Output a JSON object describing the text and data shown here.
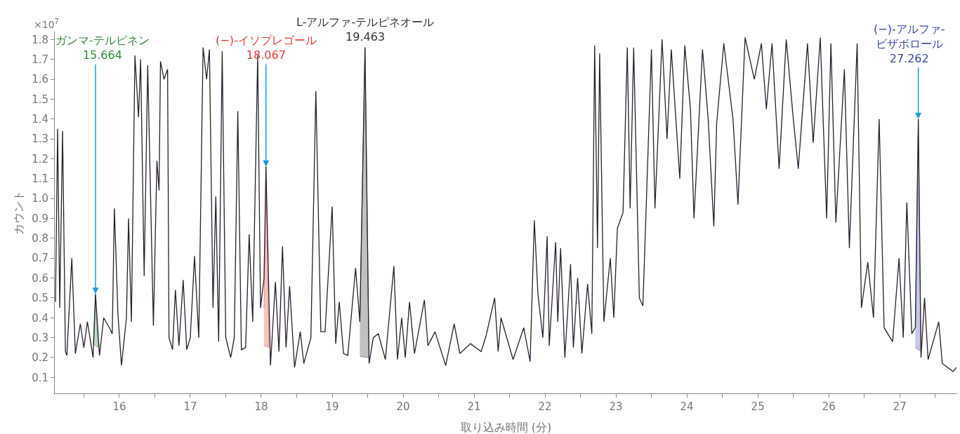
{
  "chart_data": {
    "type": "line",
    "xlabel": "取り込み時間 (分)",
    "ylabel": "カウント",
    "xlim": [
      15.09,
      27.81
    ],
    "xticks": [
      {
        "value": 15.5,
        "label": null
      },
      16,
      {
        "value": 16.5,
        "label": null
      },
      17,
      {
        "value": 17.5,
        "label": null
      },
      18,
      {
        "value": 18.5,
        "label": null
      },
      19,
      {
        "value": 19.5,
        "label": null
      },
      20,
      {
        "value": 20.5,
        "label": null
      },
      21,
      {
        "value": 21.5,
        "label": null
      },
      22,
      {
        "value": 22.5,
        "label": null
      },
      23,
      {
        "value": 23.5,
        "label": null
      },
      24,
      {
        "value": 24.5,
        "label": null
      },
      25,
      {
        "value": 25.5,
        "label": null
      },
      26,
      {
        "value": 26.5,
        "label": null
      },
      27,
      {
        "value": 27.5,
        "label": null
      }
    ],
    "ylim": [
      0.02,
      1.84
    ],
    "yticks": [
      0.1,
      0.2,
      0.3,
      0.4,
      0.5,
      0.6,
      0.7,
      0.8,
      0.9,
      {
        "value": 1.0,
        "label": "1.0"
      },
      1.1,
      1.2,
      1.3,
      1.4,
      1.5,
      1.6,
      1.7,
      1.8
    ],
    "marker": "none",
    "line_style": "solid",
    "series": [
      {
        "color": "#2a1f2d",
        "x": [
          15.1,
          15.13,
          15.16,
          15.2,
          15.24,
          15.26,
          15.33,
          15.38,
          15.45,
          15.5,
          15.55,
          15.63,
          15.664,
          15.72,
          15.78,
          15.86,
          15.9,
          15.93,
          15.98,
          16.03,
          16.1,
          16.13,
          16.17,
          16.22,
          16.27,
          16.3,
          16.35,
          16.4,
          16.48,
          16.53,
          16.56,
          16.58,
          16.63,
          16.68,
          16.7,
          16.75,
          16.79,
          16.84,
          16.9,
          16.95,
          17.0,
          17.06,
          17.12,
          17.18,
          17.23,
          17.27,
          17.32,
          17.36,
          17.4,
          17.45,
          17.5,
          17.57,
          17.62,
          17.67,
          17.72,
          17.78,
          17.83,
          17.88,
          17.95,
          17.99,
          18.04,
          18.067,
          18.13,
          18.2,
          18.25,
          18.3,
          18.35,
          18.4,
          18.47,
          18.55,
          18.6,
          18.7,
          18.77,
          18.84,
          18.9,
          19.0,
          19.05,
          19.1,
          19.16,
          19.22,
          19.33,
          19.39,
          19.463,
          19.52,
          19.58,
          19.65,
          19.75,
          19.87,
          19.92,
          19.98,
          20.03,
          20.09,
          20.16,
          20.3,
          20.35,
          20.45,
          20.6,
          20.72,
          20.8,
          20.95,
          21.1,
          21.17,
          21.29,
          21.34,
          21.38,
          21.55,
          21.7,
          21.79,
          21.85,
          21.9,
          21.97,
          22.03,
          22.06,
          22.15,
          22.18,
          22.22,
          22.28,
          22.36,
          22.4,
          22.46,
          22.52,
          22.6,
          22.66,
          22.7,
          22.74,
          22.77,
          22.83,
          22.92,
          22.97,
          23.02,
          23.1,
          23.16,
          23.2,
          23.25,
          23.33,
          23.38,
          23.5,
          23.55,
          23.65,
          23.72,
          23.78,
          23.9,
          23.97,
          24.05,
          24.1,
          24.22,
          24.3,
          24.38,
          24.42,
          24.52,
          24.65,
          24.72,
          24.82,
          24.95,
          25.05,
          25.12,
          25.2,
          25.3,
          25.4,
          25.5,
          25.57,
          25.7,
          25.78,
          25.88,
          25.97,
          26.03,
          26.1,
          26.22,
          26.29,
          26.4,
          26.46,
          26.55,
          26.63,
          26.71,
          26.78,
          26.9,
          26.99,
          27.05,
          27.1,
          27.17,
          27.22,
          27.262,
          27.3,
          27.35,
          27.4,
          27.55,
          27.6,
          27.75,
          27.8
        ],
        "values": [
          0.48,
          1.35,
          0.45,
          1.34,
          0.23,
          0.21,
          0.7,
          0.22,
          0.37,
          0.25,
          0.38,
          0.2,
          0.52,
          0.21,
          0.4,
          0.35,
          0.32,
          0.95,
          0.42,
          0.16,
          0.4,
          0.9,
          0.38,
          1.72,
          1.41,
          1.7,
          0.61,
          1.67,
          0.36,
          1.19,
          1.04,
          1.69,
          1.6,
          1.65,
          0.3,
          0.24,
          0.54,
          0.26,
          0.59,
          0.24,
          0.3,
          0.71,
          0.3,
          1.76,
          1.6,
          1.75,
          0.45,
          1.01,
          0.28,
          1.74,
          0.3,
          0.2,
          0.3,
          1.44,
          0.24,
          0.25,
          0.82,
          0.38,
          1.72,
          0.45,
          0.6,
          1.16,
          0.16,
          0.58,
          0.23,
          0.76,
          0.25,
          0.56,
          0.15,
          0.33,
          0.17,
          0.3,
          1.54,
          0.33,
          0.33,
          0.96,
          0.27,
          0.48,
          0.22,
          0.21,
          0.65,
          0.38,
          1.76,
          0.17,
          0.3,
          0.32,
          0.19,
          0.66,
          0.19,
          0.4,
          0.2,
          0.48,
          0.22,
          0.49,
          0.26,
          0.33,
          0.16,
          0.37,
          0.22,
          0.27,
          0.23,
          0.31,
          0.5,
          0.23,
          0.4,
          0.19,
          0.35,
          0.18,
          0.89,
          0.52,
          0.3,
          0.81,
          0.26,
          0.78,
          0.38,
          0.75,
          0.2,
          0.67,
          0.25,
          0.6,
          0.22,
          0.57,
          0.32,
          1.77,
          0.75,
          1.73,
          0.38,
          0.7,
          0.4,
          0.85,
          0.93,
          1.76,
          0.95,
          1.76,
          0.5,
          0.46,
          1.75,
          0.95,
          1.8,
          1.3,
          1.75,
          1.1,
          1.77,
          1.45,
          0.9,
          1.75,
          1.4,
          0.86,
          1.38,
          1.78,
          1.4,
          0.97,
          1.81,
          1.6,
          1.78,
          1.45,
          1.78,
          1.15,
          1.8,
          1.4,
          1.15,
          1.78,
          1.28,
          1.81,
          0.9,
          1.78,
          0.88,
          1.65,
          0.75,
          1.78,
          0.45,
          0.68,
          0.4,
          1.4,
          0.35,
          0.28,
          0.7,
          0.3,
          0.98,
          0.32,
          0.35,
          1.4,
          0.2,
          0.5,
          0.19,
          0.38,
          0.17,
          0.13,
          0.15
        ]
      },
      {
        "type": "area",
        "color": "#2e8b3a",
        "x": [
          15.63,
          15.664,
          15.7,
          15.63
        ],
        "values": [
          0.27,
          0.52,
          0.25,
          0.27
        ]
      },
      {
        "type": "area",
        "color": "#e53935",
        "x": [
          18.04,
          18.067,
          18.11,
          18.04
        ],
        "values": [
          0.45,
          1.16,
          0.25,
          0.26
        ]
      },
      {
        "type": "area",
        "color": "#333333",
        "x": [
          19.39,
          19.463,
          19.52,
          19.39
        ],
        "values": [
          0.38,
          1.76,
          0.2,
          0.205
        ]
      },
      {
        "type": "area",
        "color": "#3949ab",
        "x": [
          27.22,
          27.262,
          27.3,
          27.22
        ],
        "values": [
          0.35,
          1.4,
          0.23,
          0.25
        ]
      }
    ],
    "annotations": [
      "×10$^{7}$",
      {
        "text": "ガンマ-テルピネン\n15.664",
        "x": 15.664,
        "y": 0.52
      },
      {
        "text": "(−)-イソプレゴール\n18.067",
        "x": 18.067,
        "y": 1.16
      },
      {
        "text": "L-アルファ-テルピネオール\n19.463",
        "x": 19.463,
        "y": 1.76
      },
      {
        "text": "(−)-アルファ-\nビザボロール\n27.262",
        "x": 27.262,
        "y": 1.4
      }
    ]
  }
}
